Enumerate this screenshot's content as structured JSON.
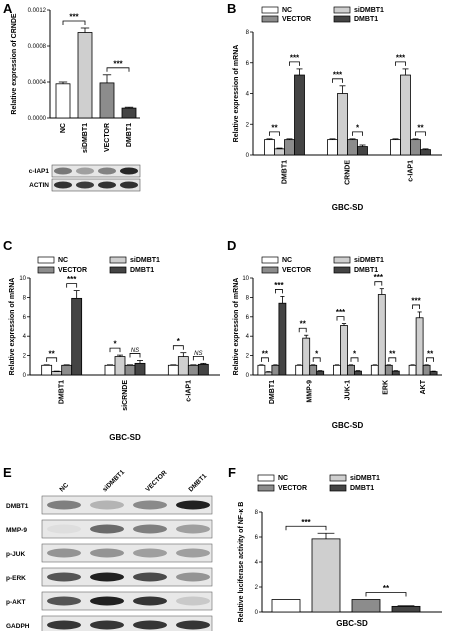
{
  "panels": [
    {
      "letter": "A"
    },
    {
      "letter": "B"
    },
    {
      "letter": "C"
    },
    {
      "letter": "D"
    },
    {
      "letter": "E"
    },
    {
      "letter": "F"
    }
  ],
  "colors": {
    "NC": "#ffffff",
    "siDMBT1": "#cfcfcf",
    "VECTOR": "#8c8c8c",
    "DMBT1": "#444444"
  },
  "chart_data": [
    {
      "id": "A",
      "type": "bar",
      "ylabel": "Relative expression of CRNDE",
      "ylim": [
        0,
        0.0012
      ],
      "yticks": [
        "0.0000",
        "0.0004",
        "0.0008",
        "0.0012"
      ],
      "categories": [
        "NC",
        "siDMBT1",
        "VECTOR",
        "DMBT1"
      ],
      "values": [
        0.00038,
        0.00095,
        0.00039,
        0.00011
      ],
      "errors": [
        2e-05,
        5e-05,
        9e-05,
        1e-05
      ],
      "significance": [
        {
          "from": 0,
          "to": 1,
          "label": "***"
        },
        {
          "from": 2,
          "to": 3,
          "label": "***"
        }
      ]
    },
    {
      "id": "B",
      "type": "bar",
      "ylabel": "Relative expression of mRNA",
      "xlabel": "GBC-SD",
      "ylim": [
        0,
        8
      ],
      "yticks": [
        "0",
        "2",
        "4",
        "6",
        "8"
      ],
      "categories": [
        "DMBT1",
        "CRNDE",
        "c-IAP1"
      ],
      "series": [
        {
          "name": "NC",
          "values": [
            1,
            1,
            1
          ],
          "errors": [
            0.05,
            0.05,
            0.05
          ]
        },
        {
          "name": "siDMBT1",
          "values": [
            0.4,
            4.0,
            5.2
          ],
          "errors": [
            0.05,
            0.5,
            0.4
          ]
        },
        {
          "name": "VECTOR",
          "values": [
            1,
            1,
            1
          ],
          "errors": [
            0.05,
            0.05,
            0.05
          ]
        },
        {
          "name": "DMBT1",
          "values": [
            5.2,
            0.55,
            0.35
          ],
          "errors": [
            0.4,
            0.1,
            0.05
          ]
        }
      ],
      "significance": [
        {
          "group": 0,
          "from": 0,
          "to": 1,
          "label": "**"
        },
        {
          "group": 0,
          "from": 2,
          "to": 3,
          "label": "***"
        },
        {
          "group": 1,
          "from": 0,
          "to": 1,
          "label": "***"
        },
        {
          "group": 1,
          "from": 2,
          "to": 3,
          "label": "*"
        },
        {
          "group": 2,
          "from": 0,
          "to": 1,
          "label": "***"
        },
        {
          "group": 2,
          "from": 2,
          "to": 3,
          "label": "**"
        }
      ]
    },
    {
      "id": "C",
      "type": "bar",
      "ylabel": "Relative expression of mRNA",
      "xlabel": "GBC-SD",
      "ylim": [
        0,
        10
      ],
      "yticks": [
        "0",
        "2",
        "4",
        "6",
        "8",
        "10"
      ],
      "categories": [
        "DMBT1",
        "siCRNDE",
        "c-IAP1"
      ],
      "series": [
        {
          "name": "NC",
          "values": [
            1,
            1,
            1
          ],
          "errors": [
            0.05,
            0.05,
            0.05
          ]
        },
        {
          "name": "siDMBT1",
          "values": [
            0.35,
            1.9,
            1.9
          ],
          "errors": [
            0.05,
            0.15,
            0.4
          ]
        },
        {
          "name": "VECTOR",
          "values": [
            1,
            1,
            1
          ],
          "errors": [
            0.05,
            0.05,
            0.05
          ]
        },
        {
          "name": "DMBT1",
          "values": [
            7.9,
            1.2,
            1.1
          ],
          "errors": [
            0.8,
            0.3,
            0.1
          ]
        }
      ],
      "significance": [
        {
          "group": 0,
          "from": 0,
          "to": 1,
          "label": "**"
        },
        {
          "group": 0,
          "from": 2,
          "to": 3,
          "label": "***"
        },
        {
          "group": 1,
          "from": 0,
          "to": 1,
          "label": "*"
        },
        {
          "group": 1,
          "from": 2,
          "to": 3,
          "label": "NS"
        },
        {
          "group": 2,
          "from": 0,
          "to": 1,
          "label": "*"
        },
        {
          "group": 2,
          "from": 2,
          "to": 3,
          "label": "NS"
        }
      ]
    },
    {
      "id": "D",
      "type": "bar",
      "ylabel": "Relative expression of mRNA",
      "xlabel": "GBC-SD",
      "ylim": [
        0,
        10
      ],
      "yticks": [
        "0",
        "2",
        "4",
        "6",
        "8",
        "10"
      ],
      "categories": [
        "DMBT1",
        "MMP-9",
        "JUK-1",
        "ERK",
        "AKT"
      ],
      "series": [
        {
          "name": "NC",
          "values": [
            1,
            1,
            1,
            1,
            1
          ],
          "errors": [
            0.05,
            0.05,
            0.05,
            0.05,
            0.05
          ]
        },
        {
          "name": "siDMBT1",
          "values": [
            0.3,
            3.8,
            5.1,
            8.3,
            5.9
          ],
          "errors": [
            0.05,
            0.3,
            0.2,
            0.6,
            0.6
          ]
        },
        {
          "name": "VECTOR",
          "values": [
            1,
            1,
            1,
            1,
            1
          ],
          "errors": [
            0.05,
            0.05,
            0.05,
            0.05,
            0.05
          ]
        },
        {
          "name": "DMBT1",
          "values": [
            7.4,
            0.4,
            0.4,
            0.4,
            0.35
          ],
          "errors": [
            0.7,
            0.05,
            0.05,
            0.05,
            0.05
          ]
        }
      ],
      "significance": [
        {
          "group": 0,
          "from": 0,
          "to": 1,
          "label": "**"
        },
        {
          "group": 0,
          "from": 2,
          "to": 3,
          "label": "***"
        },
        {
          "group": 1,
          "from": 0,
          "to": 1,
          "label": "**"
        },
        {
          "group": 1,
          "from": 2,
          "to": 3,
          "label": "*"
        },
        {
          "group": 2,
          "from": 0,
          "to": 1,
          "label": "***"
        },
        {
          "group": 2,
          "from": 2,
          "to": 3,
          "label": "*"
        },
        {
          "group": 3,
          "from": 0,
          "to": 1,
          "label": "***"
        },
        {
          "group": 3,
          "from": 2,
          "to": 3,
          "label": "**"
        },
        {
          "group": 4,
          "from": 0,
          "to": 1,
          "label": "***"
        },
        {
          "group": 4,
          "from": 2,
          "to": 3,
          "label": "**"
        }
      ]
    },
    {
      "id": "F",
      "type": "bar",
      "ylabel": "Relative luciferase activity of NF-κ B",
      "xlabel": "GBC-SD",
      "ylim": [
        0,
        8
      ],
      "yticks": [
        "0",
        "2",
        "4",
        "6",
        "8"
      ],
      "categories": [
        "NC",
        "siDMBT1",
        "VECTOR",
        "DMBT1"
      ],
      "values": [
        1,
        5.85,
        1,
        0.45
      ],
      "errors": [
        0,
        0.45,
        0,
        0.05
      ],
      "significance": [
        {
          "from": 0,
          "to": 1,
          "label": "***"
        },
        {
          "from": 2,
          "to": 3,
          "label": "**"
        }
      ]
    }
  ],
  "legend": {
    "items": [
      "NC",
      "siDMBT1",
      "VECTOR",
      "DMBT1"
    ]
  },
  "blot_a": {
    "rows": [
      "c-IAP1",
      "ACTIN"
    ]
  },
  "blot_e": {
    "columns": [
      "NC",
      "siDMBT1",
      "VECTOR",
      "DMBT1"
    ],
    "rows": [
      "DMBT1",
      "MMP-9",
      "p-JUK",
      "p-ERK",
      "p-AKT",
      "GADPH"
    ],
    "intensities": [
      [
        0.5,
        0.25,
        0.45,
        0.95
      ],
      [
        0.05,
        0.6,
        0.5,
        0.35
      ],
      [
        0.4,
        0.4,
        0.35,
        0.35
      ],
      [
        0.7,
        0.95,
        0.75,
        0.4
      ],
      [
        0.7,
        0.95,
        0.85,
        0.15
      ],
      [
        0.85,
        0.85,
        0.85,
        0.85
      ]
    ]
  }
}
